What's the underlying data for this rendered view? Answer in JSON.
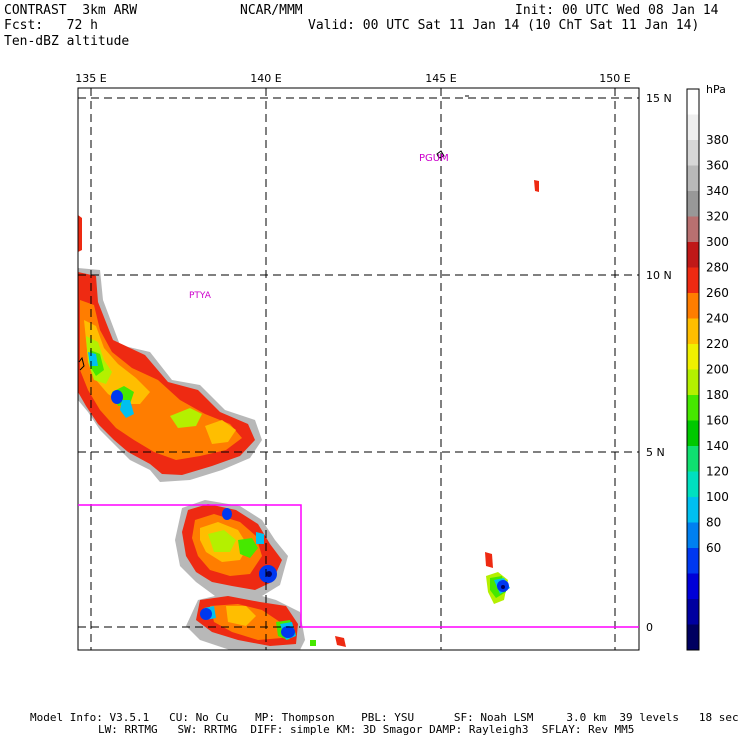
{
  "header": {
    "left1": "CONTRAST  3km ARW",
    "left2": "Fcst:   72 h",
    "left3": "Ten-dBZ altitude",
    "center": "NCAR/MMM",
    "right1": "Init: 00 UTC Wed 08 Jan 14",
    "right2": "Valid: 00 UTC Sat 11 Jan 14 (10 ChT Sat 11 Jan 14)"
  },
  "map": {
    "lon_labels": [
      "135 E",
      "140 E",
      "145 E",
      "150 E"
    ],
    "lat_labels": [
      "15 N",
      "10 N",
      "5 N",
      "0"
    ],
    "station_labels": [
      "PGUM",
      "PTYA"
    ],
    "colors": {
      "grid": "#000000",
      "box": "#ff00ff",
      "station": "#cc00cc"
    }
  },
  "legend": {
    "unit": "hPa",
    "levels": [
      "380",
      "360",
      "340",
      "320",
      "300",
      "280",
      "260",
      "240",
      "220",
      "200",
      "180",
      "160",
      "140",
      "120",
      "100",
      "80",
      "60"
    ],
    "colors": [
      "#ffffff",
      "#efefef",
      "#d6d6d6",
      "#b8b8b8",
      "#989898",
      "#b87070",
      "#c01818",
      "#ee2a12",
      "#ff7d00",
      "#ffbe00",
      "#f0f000",
      "#b4f000",
      "#46e800",
      "#00c800",
      "#10e070",
      "#00e0c0",
      "#00c0f0",
      "#0080f0",
      "#0038f0",
      "#0000d8",
      "#0000a0",
      "#000060"
    ]
  },
  "footer": {
    "line1": "Model Info: V3.5.1   CU: No Cu    MP: Thompson    PBL: YSU      SF: Noah LSM     3.0 km  39 levels   18 sec",
    "line2": "LW: RRTMG   SW: RRTMG  DIFF: simple KM: 3D Smagor DAMP: Rayleigh3  SFLAY: Rev MM5"
  }
}
